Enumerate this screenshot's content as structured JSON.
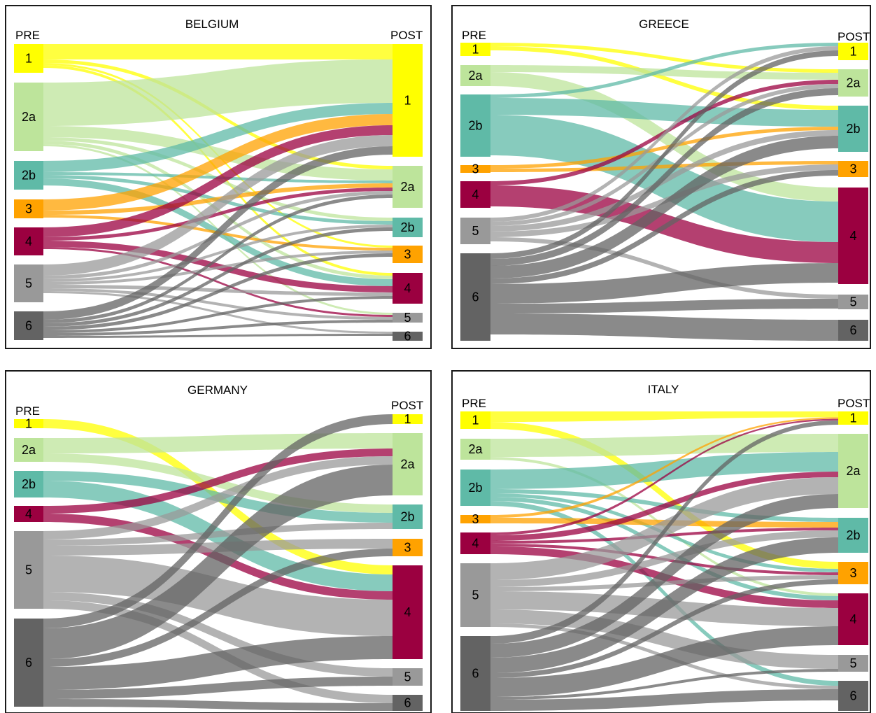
{
  "colors": {
    "1": "#ffff00",
    "2a": "#bde49b",
    "2b": "#5fbaa7",
    "3": "#ffa200",
    "4": "#9b0040",
    "5": "#999999",
    "6": "#636363"
  },
  "pre_label": "PRE",
  "post_label": "POST",
  "panels": [
    {
      "title": "BELGIUM",
      "pre_nodes": [
        {
          "label": "1",
          "y0": 63,
          "y1": 104
        },
        {
          "label": "2a",
          "y0": 118,
          "y1": 216
        },
        {
          "label": "2b",
          "y0": 230,
          "y1": 271
        },
        {
          "label": "3",
          "y0": 285,
          "y1": 312
        },
        {
          "label": "4",
          "y0": 325,
          "y1": 365
        },
        {
          "label": "5",
          "y0": 378,
          "y1": 432
        },
        {
          "label": "6",
          "y0": 445,
          "y1": 486
        }
      ],
      "post_nodes": [
        {
          "label": "1",
          "y0": 63,
          "y1": 224
        },
        {
          "label": "2a",
          "y0": 237,
          "y1": 297
        },
        {
          "label": "2b",
          "y0": 311,
          "y1": 339
        },
        {
          "label": "3",
          "y0": 351,
          "y1": 376
        },
        {
          "label": "4",
          "y0": 390,
          "y1": 434
        },
        {
          "label": "5",
          "y0": 447,
          "y1": 461
        },
        {
          "label": "6",
          "y0": 474,
          "y1": 487
        }
      ],
      "flows": [
        {
          "from": "1",
          "to": "1",
          "w": 22
        },
        {
          "from": "1",
          "to": "2a",
          "w": 5
        },
        {
          "from": "1",
          "to": "3",
          "w": 3
        },
        {
          "from": "1",
          "to": "4",
          "w": 4
        },
        {
          "from": "2a",
          "to": "1",
          "w": 62
        },
        {
          "from": "2a",
          "to": "2a",
          "w": 16
        },
        {
          "from": "2a",
          "to": "2b",
          "w": 5
        },
        {
          "from": "2a",
          "to": "4",
          "w": 5
        },
        {
          "from": "2a",
          "to": "5",
          "w": 3
        },
        {
          "from": "2b",
          "to": "1",
          "w": 16
        },
        {
          "from": "2b",
          "to": "2a",
          "w": 4
        },
        {
          "from": "2b",
          "to": "2b",
          "w": 5
        },
        {
          "from": "2b",
          "to": "4",
          "w": 10
        },
        {
          "from": "3",
          "to": "1",
          "w": 16
        },
        {
          "from": "3",
          "to": "2a",
          "w": 6
        },
        {
          "from": "3",
          "to": "3",
          "w": 4
        },
        {
          "from": "4",
          "to": "1",
          "w": 14
        },
        {
          "from": "4",
          "to": "2a",
          "w": 5
        },
        {
          "from": "4",
          "to": "4",
          "w": 9
        },
        {
          "from": "4",
          "to": "5",
          "w": 3
        },
        {
          "from": "5",
          "to": "1",
          "w": 16
        },
        {
          "from": "5",
          "to": "2a",
          "w": 5
        },
        {
          "from": "5",
          "to": "2b",
          "w": 4
        },
        {
          "from": "5",
          "to": "3",
          "w": 4
        },
        {
          "from": "5",
          "to": "4",
          "w": 5
        },
        {
          "from": "5",
          "to": "5",
          "w": 4
        },
        {
          "from": "5",
          "to": "6",
          "w": 3
        },
        {
          "from": "6",
          "to": "1",
          "w": 12
        },
        {
          "from": "6",
          "to": "2a",
          "w": 5
        },
        {
          "from": "6",
          "to": "2b",
          "w": 5
        },
        {
          "from": "6",
          "to": "3",
          "w": 5
        },
        {
          "from": "6",
          "to": "4",
          "w": 4
        },
        {
          "from": "6",
          "to": "5",
          "w": 4
        },
        {
          "from": "6",
          "to": "6",
          "w": 3
        }
      ]
    },
    {
      "title": "GREECE",
      "pre_nodes": [
        {
          "label": "1",
          "y0": 61,
          "y1": 80
        },
        {
          "label": "2a",
          "y0": 93,
          "y1": 123
        },
        {
          "label": "2b",
          "y0": 135,
          "y1": 224
        },
        {
          "label": "3",
          "y0": 236,
          "y1": 247
        },
        {
          "label": "4",
          "y0": 259,
          "y1": 297
        },
        {
          "label": "5",
          "y0": 311,
          "y1": 349
        },
        {
          "label": "6",
          "y0": 362,
          "y1": 487
        }
      ],
      "post_nodes": [
        {
          "label": "1",
          "y0": 61,
          "y1": 86
        },
        {
          "label": "2a",
          "y0": 99,
          "y1": 138
        },
        {
          "label": "2b",
          "y0": 151,
          "y1": 217
        },
        {
          "label": "3",
          "y0": 230,
          "y1": 253
        },
        {
          "label": "4",
          "y0": 268,
          "y1": 406
        },
        {
          "label": "5",
          "y0": 421,
          "y1": 442
        },
        {
          "label": "6",
          "y0": 457,
          "y1": 487
        }
      ],
      "flows": [
        {
          "from": "1",
          "to": "2a",
          "w": 5
        },
        {
          "from": "1",
          "to": "2b",
          "w": 6
        },
        {
          "from": "2a",
          "to": "2a",
          "w": 10
        },
        {
          "from": "2a",
          "to": "4",
          "w": 20
        },
        {
          "from": "2b",
          "to": "1",
          "w": 5
        },
        {
          "from": "2b",
          "to": "2b",
          "w": 24
        },
        {
          "from": "2b",
          "to": "4",
          "w": 58
        },
        {
          "from": "3",
          "to": "2b",
          "w": 5
        },
        {
          "from": "3",
          "to": "3",
          "w": 5
        },
        {
          "from": "4",
          "to": "2a",
          "w": 6
        },
        {
          "from": "4",
          "to": "4",
          "w": 30
        },
        {
          "from": "5",
          "to": "1",
          "w": 6
        },
        {
          "from": "5",
          "to": "2a",
          "w": 6
        },
        {
          "from": "5",
          "to": "2b",
          "w": 8
        },
        {
          "from": "5",
          "to": "3",
          "w": 8
        },
        {
          "from": "5",
          "to": "5",
          "w": 6
        },
        {
          "from": "6",
          "to": "1",
          "w": 8
        },
        {
          "from": "6",
          "to": "2a",
          "w": 10
        },
        {
          "from": "6",
          "to": "2b",
          "w": 18
        },
        {
          "from": "6",
          "to": "3",
          "w": 8
        },
        {
          "from": "6",
          "to": "4",
          "w": 28
        },
        {
          "from": "6",
          "to": "5",
          "w": 14
        },
        {
          "from": "6",
          "to": "6",
          "w": 30
        }
      ]
    },
    {
      "title": "GERMANY",
      "pre_nodes": [
        {
          "label": "1",
          "y0": 599,
          "y1": 612
        },
        {
          "label": "2a",
          "y0": 626,
          "y1": 660
        },
        {
          "label": "2b",
          "y0": 673,
          "y1": 711
        },
        {
          "label": "4",
          "y0": 723,
          "y1": 746
        },
        {
          "label": "5",
          "y0": 759,
          "y1": 870
        },
        {
          "label": "6",
          "y0": 884,
          "y1": 1010
        }
      ],
      "post_nodes": [
        {
          "label": "1",
          "y0": 592,
          "y1": 606
        },
        {
          "label": "2a",
          "y0": 619,
          "y1": 708
        },
        {
          "label": "2b",
          "y0": 721,
          "y1": 756
        },
        {
          "label": "3",
          "y0": 770,
          "y1": 795
        },
        {
          "label": "4",
          "y0": 808,
          "y1": 942
        },
        {
          "label": "5",
          "y0": 955,
          "y1": 980
        },
        {
          "label": "6",
          "y0": 993,
          "y1": 1016
        }
      ],
      "flows": [
        {
          "from": "1",
          "to": "4",
          "w": 13
        },
        {
          "from": "2a",
          "to": "2a",
          "w": 22
        },
        {
          "from": "2a",
          "to": "2b",
          "w": 12
        },
        {
          "from": "2b",
          "to": "2b",
          "w": 14
        },
        {
          "from": "2b",
          "to": "4",
          "w": 24
        },
        {
          "from": "4",
          "to": "2a",
          "w": 11
        },
        {
          "from": "4",
          "to": "4",
          "w": 12
        },
        {
          "from": "5",
          "to": "2a",
          "w": 12
        },
        {
          "from": "5",
          "to": "2b",
          "w": 9
        },
        {
          "from": "5",
          "to": "3",
          "w": 14
        },
        {
          "from": "5",
          "to": "4",
          "w": 52
        },
        {
          "from": "5",
          "to": "5",
          "w": 12
        },
        {
          "from": "5",
          "to": "6",
          "w": 12
        },
        {
          "from": "6",
          "to": "1",
          "w": 14
        },
        {
          "from": "6",
          "to": "2a",
          "w": 44
        },
        {
          "from": "6",
          "to": "3",
          "w": 11
        },
        {
          "from": "6",
          "to": "4",
          "w": 33
        },
        {
          "from": "6",
          "to": "5",
          "w": 13
        },
        {
          "from": "6",
          "to": "6",
          "w": 11
        }
      ]
    },
    {
      "title": "ITALY",
      "pre_nodes": [
        {
          "label": "1",
          "y0": 588,
          "y1": 613
        },
        {
          "label": "2a",
          "y0": 627,
          "y1": 657
        },
        {
          "label": "2b",
          "y0": 671,
          "y1": 723
        },
        {
          "label": "3",
          "y0": 736,
          "y1": 748
        },
        {
          "label": "4",
          "y0": 761,
          "y1": 792
        },
        {
          "label": "5",
          "y0": 805,
          "y1": 896
        },
        {
          "label": "6",
          "y0": 909,
          "y1": 1016
        }
      ],
      "post_nodes": [
        {
          "label": "1",
          "y0": 588,
          "y1": 607
        },
        {
          "label": "2a",
          "y0": 620,
          "y1": 726
        },
        {
          "label": "2b",
          "y0": 740,
          "y1": 790
        },
        {
          "label": "3",
          "y0": 803,
          "y1": 835
        },
        {
          "label": "4",
          "y0": 848,
          "y1": 922
        },
        {
          "label": "5",
          "y0": 936,
          "y1": 960
        },
        {
          "label": "6",
          "y0": 973,
          "y1": 1016
        }
      ],
      "flows": [
        {
          "from": "1",
          "to": "1",
          "w": 15
        },
        {
          "from": "1",
          "to": "3",
          "w": 10
        },
        {
          "from": "2a",
          "to": "2a",
          "w": 26
        },
        {
          "from": "2a",
          "to": "4",
          "w": 4
        },
        {
          "from": "2b",
          "to": "2a",
          "w": 28
        },
        {
          "from": "2b",
          "to": "2b",
          "w": 6
        },
        {
          "from": "2b",
          "to": "3",
          "w": 5
        },
        {
          "from": "2b",
          "to": "4",
          "w": 6
        },
        {
          "from": "2b",
          "to": "6",
          "w": 7
        },
        {
          "from": "3",
          "to": "1",
          "w": 4
        },
        {
          "from": "3",
          "to": "2b",
          "w": 8
        },
        {
          "from": "4",
          "to": "1",
          "w": 4
        },
        {
          "from": "4",
          "to": "2a",
          "w": 8
        },
        {
          "from": "4",
          "to": "2b",
          "w": 4
        },
        {
          "from": "4",
          "to": "3",
          "w": 4
        },
        {
          "from": "4",
          "to": "4",
          "w": 11
        },
        {
          "from": "5",
          "to": "2a",
          "w": 24
        },
        {
          "from": "5",
          "to": "2b",
          "w": 10
        },
        {
          "from": "5",
          "to": "3",
          "w": 6
        },
        {
          "from": "5",
          "to": "4",
          "w": 26
        },
        {
          "from": "5",
          "to": "5",
          "w": 20
        },
        {
          "from": "5",
          "to": "6",
          "w": 5
        },
        {
          "from": "6",
          "to": "1",
          "w": 11
        },
        {
          "from": "6",
          "to": "2a",
          "w": 20
        },
        {
          "from": "6",
          "to": "2b",
          "w": 22
        },
        {
          "from": "6",
          "to": "3",
          "w": 7
        },
        {
          "from": "6",
          "to": "4",
          "w": 27
        },
        {
          "from": "6",
          "to": "5",
          "w": 4
        },
        {
          "from": "6",
          "to": "6",
          "w": 16
        }
      ]
    }
  ]
}
